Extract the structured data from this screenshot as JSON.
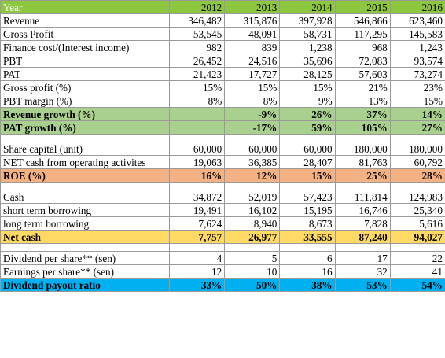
{
  "header": {
    "label": "Year",
    "years": [
      "2012",
      "2013",
      "2014",
      "2015",
      "2016"
    ]
  },
  "rows": [
    {
      "label": "Revenue",
      "values": [
        "346,482",
        "315,876",
        "397,928",
        "546,866",
        "623,460"
      ],
      "style": ""
    },
    {
      "label": "Gross Profit",
      "values": [
        "53,545",
        "48,091",
        "58,731",
        "117,295",
        "145,583"
      ],
      "style": ""
    },
    {
      "label": "Finance cost/(Interest income)",
      "values": [
        "982",
        "839",
        "1,238",
        "968",
        "1,243"
      ],
      "style": ""
    },
    {
      "label": "PBT",
      "values": [
        "26,452",
        "24,516",
        "35,696",
        "72,083",
        "93,574"
      ],
      "style": ""
    },
    {
      "label": "PAT",
      "values": [
        "21,423",
        "17,727",
        "28,125",
        "57,603",
        "73,274"
      ],
      "style": ""
    },
    {
      "label": "Gross profit (%)",
      "values": [
        "15%",
        "15%",
        "15%",
        "21%",
        "23%"
      ],
      "style": ""
    },
    {
      "label": "PBT margin (%)",
      "values": [
        "8%",
        "8%",
        "9%",
        "13%",
        "15%"
      ],
      "style": ""
    },
    {
      "label": "Revenue growth (%)",
      "values": [
        "",
        "-9%",
        "26%",
        "37%",
        "14%"
      ],
      "style": "green"
    },
    {
      "label": "PAT growth (%)",
      "values": [
        "",
        "-17%",
        "59%",
        "105%",
        "27%"
      ],
      "style": "green"
    },
    {
      "label": "",
      "values": [
        "",
        "",
        "",
        "",
        ""
      ],
      "style": "gap"
    },
    {
      "label": "Share capital (unit)",
      "values": [
        "60,000",
        "60,000",
        "60,000",
        "180,000",
        "180,000"
      ],
      "style": ""
    },
    {
      "label": "NET cash from operating activites",
      "values": [
        "19,063",
        "36,385",
        "28,407",
        "81,763",
        "60,792"
      ],
      "style": ""
    },
    {
      "label": "ROE (%)",
      "values": [
        "16%",
        "12%",
        "15%",
        "25%",
        "28%"
      ],
      "style": "salmon"
    },
    {
      "label": "",
      "values": [
        "",
        "",
        "",
        "",
        ""
      ],
      "style": "gap"
    },
    {
      "label": "Cash",
      "values": [
        "34,872",
        "52,019",
        "57,423",
        "111,814",
        "124,983"
      ],
      "style": ""
    },
    {
      "label": "short term borrowing",
      "values": [
        "19,491",
        "16,102",
        "15,195",
        "16,746",
        "25,340"
      ],
      "style": ""
    },
    {
      "label": "long term borrowing",
      "values": [
        "7,624",
        "8,940",
        "8,673",
        "7,828",
        "5,616"
      ],
      "style": ""
    },
    {
      "label": "Net cash",
      "values": [
        "7,757",
        "26,977",
        "33,555",
        "87,240",
        "94,027"
      ],
      "style": "yellow"
    },
    {
      "label": "",
      "values": [
        "",
        "",
        "",
        "",
        ""
      ],
      "style": "gap"
    },
    {
      "label": "Dividend per share** (sen)",
      "values": [
        "4",
        "5",
        "6",
        "17",
        "22"
      ],
      "style": ""
    },
    {
      "label": "Earnings per share** (sen)",
      "values": [
        "12",
        "10",
        "16",
        "32",
        "41"
      ],
      "style": ""
    },
    {
      "label": "Dividend payout ratio",
      "values": [
        "33%",
        "50%",
        "38%",
        "53%",
        "54%"
      ],
      "style": "blue"
    }
  ]
}
